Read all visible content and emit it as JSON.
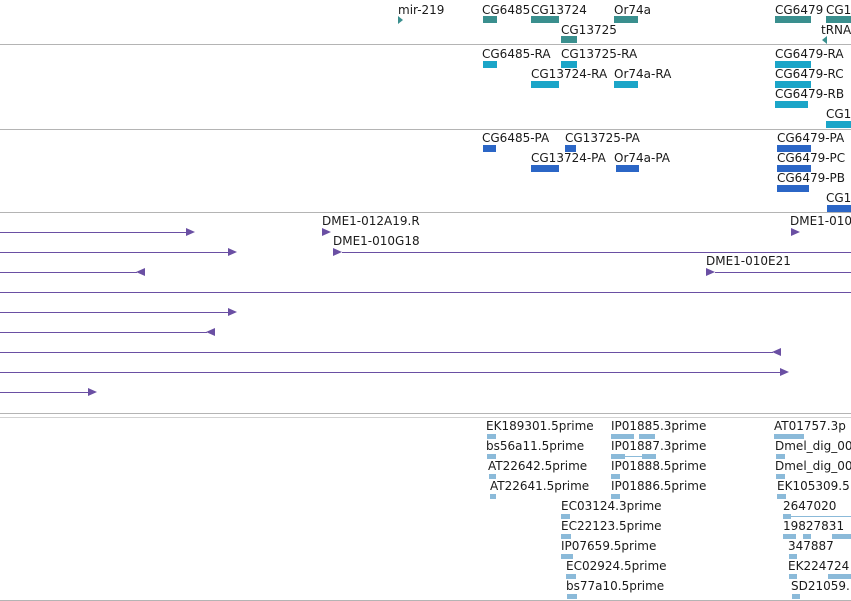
{
  "colors": {
    "gene": "#3a8f8e",
    "transcript": "#1ba5c8",
    "protein": "#2b66c6",
    "clone": "#6a4fa3",
    "est": "#8bbad9",
    "separator": "#b4b4b4"
  },
  "tracks": {
    "genes": {
      "labels": [
        "mir-219",
        "CG6485",
        "CG13724",
        "Or74a",
        "CG6479",
        "CG1",
        "CG13725",
        "tRNA"
      ]
    },
    "transcripts": {
      "labels": [
        "CG6485-RA",
        "CG13725-RA",
        "CG6479-RA",
        "CG13724-RA",
        "Or74a-RA",
        "CG6479-RC",
        "CG6479-RB",
        "CG1"
      ]
    },
    "proteins": {
      "labels": [
        "CG6485-PA",
        "CG13725-PA",
        "CG6479-PA",
        "CG13724-PA",
        "Or74a-PA",
        "CG6479-PC",
        "CG6479-PB",
        "CG1"
      ]
    },
    "clones": {
      "labels": [
        "DME1-012A19.R",
        "DME1-010G18",
        "DME1-010E21",
        "DME1-010"
      ]
    },
    "ests": {
      "labels": [
        "EK189301.5prime",
        "IP01885.3prime",
        "AT01757.3p",
        "bs56a11.5prime",
        "IP01887.3prime",
        "Dmel_dig_00",
        "AT22642.5prime",
        "IP01888.5prime",
        "Dmel_dig_00",
        "AT22641.5prime",
        "IP01886.5prime",
        "EK105309.5",
        "EC03124.3prime",
        "2647020",
        "EC22123.5prime",
        "19827831",
        "IP07659.5prime",
        "347887",
        "EC02924.5prime",
        "EK224724",
        "bs77a10.5prime",
        "SD21059."
      ]
    }
  }
}
